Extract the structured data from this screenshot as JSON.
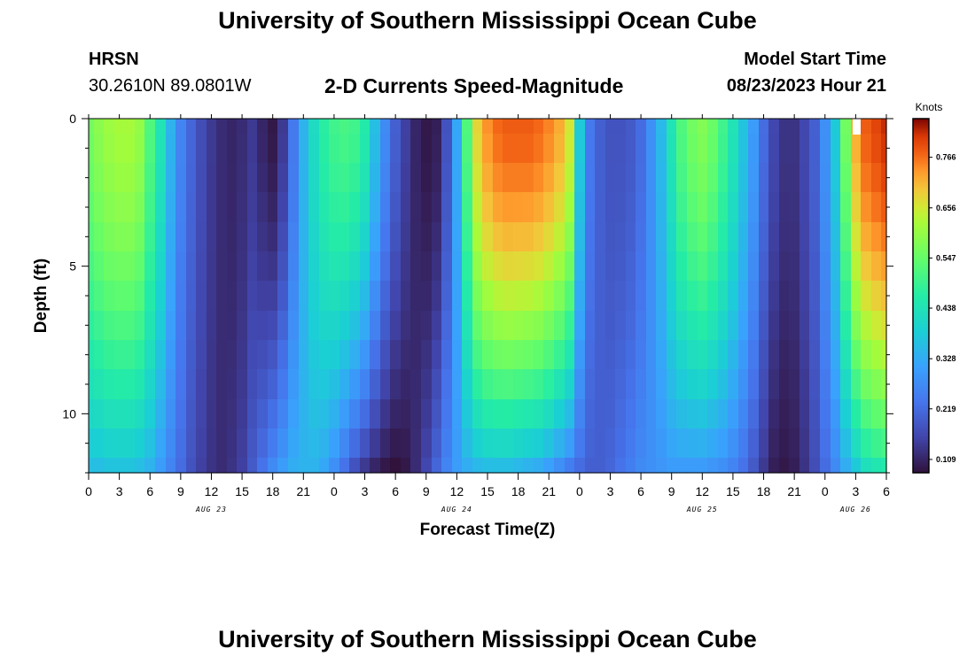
{
  "header": {
    "title": "University of Southern Mississippi Ocean Cube",
    "station": "HRSN",
    "coordinates": "30.2610N  89.0801W",
    "model_label": "Model Start Time",
    "model_time": "08/23/2023 Hour 21"
  },
  "footer": {
    "title": "University of Southern Mississippi Ocean Cube"
  },
  "chart_data": {
    "type": "heatmap",
    "title": "2-D Currents Speed-Magnitude",
    "xlabel": "Forecast Time(Z)",
    "ylabel": "Depth (ft)",
    "x_range_hours": [
      0,
      78
    ],
    "x_tick_hours": [
      0,
      3,
      6,
      9,
      12,
      15,
      18,
      21,
      24,
      27,
      30,
      33,
      36,
      39,
      42,
      45,
      48,
      51,
      54,
      57,
      60,
      63,
      66,
      69,
      72,
      75,
      78
    ],
    "x_tick_labels": [
      "0",
      "3",
      "6",
      "9",
      "12",
      "15",
      "18",
      "21",
      "0",
      "3",
      "6",
      "9",
      "12",
      "15",
      "18",
      "21",
      "0",
      "3",
      "6",
      "9",
      "12",
      "15",
      "18",
      "21",
      "0",
      "3",
      "6"
    ],
    "day_labels": [
      {
        "label": "AUG 23",
        "hour": 12
      },
      {
        "label": "AUG 24",
        "hour": 36
      },
      {
        "label": "AUG 25",
        "hour": 60
      },
      {
        "label": "AUG 26",
        "hour": 75
      }
    ],
    "y_range": [
      0,
      12
    ],
    "y_ticks": [
      0,
      5,
      10
    ],
    "y_tick_labels": [
      "0",
      "5",
      "10"
    ],
    "y_inverted": true,
    "colorbar": {
      "label": "Knots",
      "range": [
        0.08,
        0.85
      ],
      "ticks": [
        "0.109",
        "0.219",
        "0.328",
        "0.438",
        "0.547",
        "0.656",
        "0.766"
      ],
      "tick_values": [
        0.109,
        0.219,
        0.328,
        0.438,
        0.547,
        0.656,
        0.766
      ]
    },
    "grid": {
      "time_step_hours": 1,
      "depths": [
        0,
        1,
        2,
        3,
        4,
        5,
        6,
        7,
        8,
        9,
        10,
        11,
        12
      ],
      "surface_profile": [
        0.56,
        0.59,
        0.61,
        0.62,
        0.62,
        0.6,
        0.52,
        0.44,
        0.34,
        0.26,
        0.21,
        0.17,
        0.14,
        0.12,
        0.11,
        0.12,
        0.14,
        0.11,
        0.09,
        0.14,
        0.24,
        0.34,
        0.42,
        0.47,
        0.5,
        0.51,
        0.5,
        0.46,
        0.36,
        0.27,
        0.2,
        0.15,
        0.11,
        0.09,
        0.1,
        0.18,
        0.32,
        0.52,
        0.68,
        0.74,
        0.77,
        0.78,
        0.78,
        0.78,
        0.77,
        0.75,
        0.72,
        0.66,
        0.38,
        0.24,
        0.2,
        0.18,
        0.18,
        0.19,
        0.22,
        0.28,
        0.35,
        0.44,
        0.52,
        0.56,
        0.58,
        0.55,
        0.5,
        0.44,
        0.37,
        0.3,
        0.22,
        0.16,
        0.13,
        0.13,
        0.16,
        0.2,
        0.28,
        0.38,
        0.56,
        0.72,
        0.78,
        0.8,
        0.82,
        0.8,
        0.78
      ],
      "bottom_profile": [
        0.36,
        0.36,
        0.37,
        0.37,
        0.37,
        0.36,
        0.34,
        0.3,
        0.26,
        0.22,
        0.18,
        0.15,
        0.13,
        0.12,
        0.13,
        0.15,
        0.19,
        0.23,
        0.27,
        0.3,
        0.33,
        0.34,
        0.34,
        0.32,
        0.28,
        0.23,
        0.18,
        0.14,
        0.11,
        0.09,
        0.08,
        0.09,
        0.12,
        0.16,
        0.21,
        0.26,
        0.3,
        0.33,
        0.35,
        0.36,
        0.36,
        0.36,
        0.35,
        0.34,
        0.33,
        0.31,
        0.28,
        0.25,
        0.22,
        0.2,
        0.2,
        0.21,
        0.23,
        0.25,
        0.27,
        0.28,
        0.29,
        0.3,
        0.3,
        0.3,
        0.3,
        0.29,
        0.28,
        0.26,
        0.23,
        0.19,
        0.14,
        0.1,
        0.09,
        0.1,
        0.13,
        0.17,
        0.22,
        0.27,
        0.33,
        0.38,
        0.43,
        0.45,
        0.46,
        0.45,
        0.43
      ],
      "missing_cell": {
        "hour": 75,
        "depth": 0
      }
    }
  }
}
